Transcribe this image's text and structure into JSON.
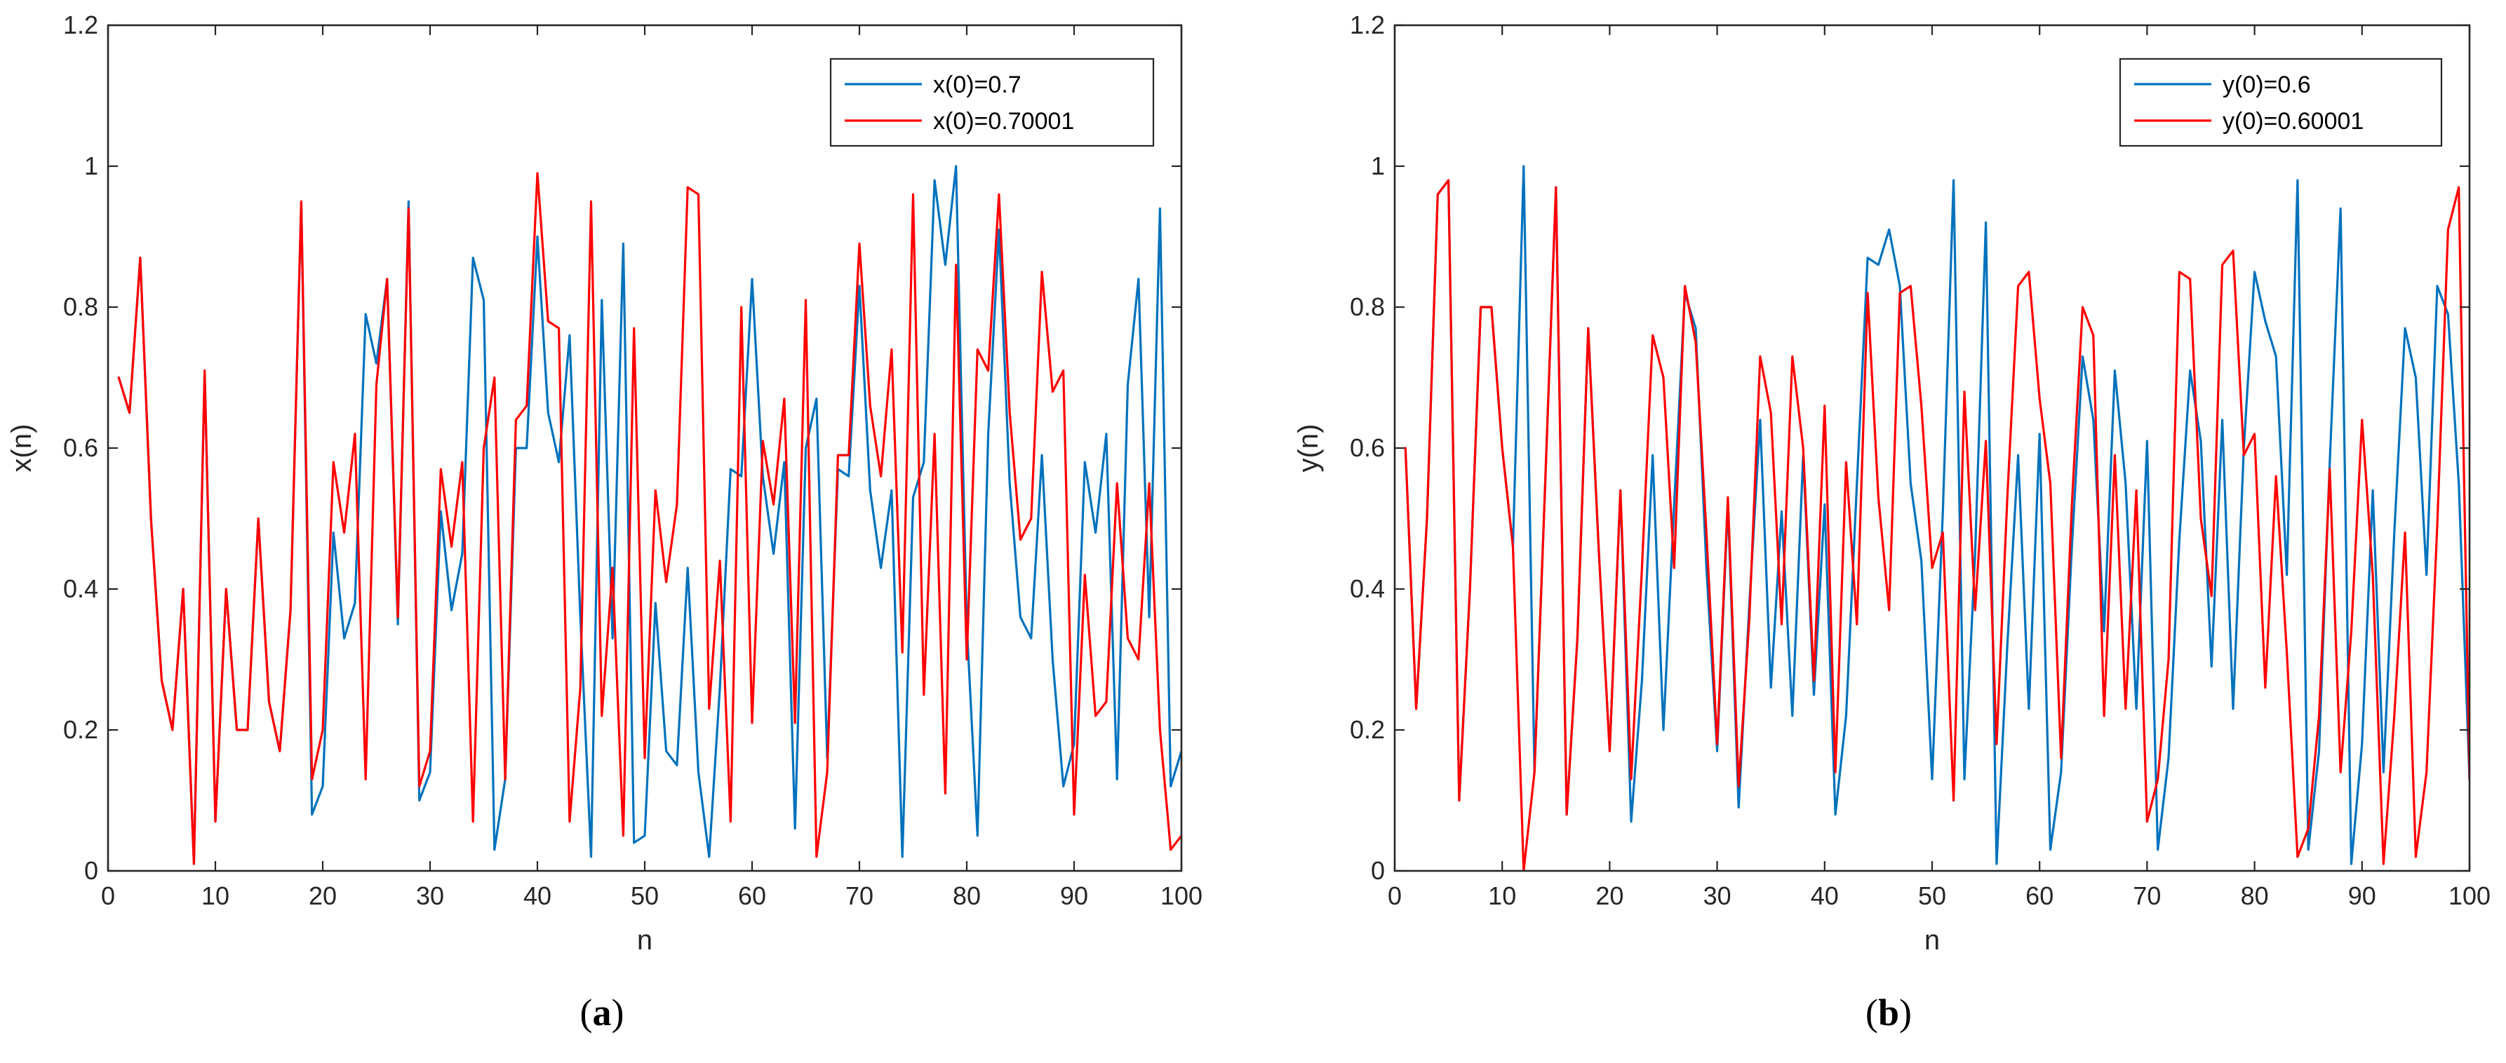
{
  "chart_data": [
    {
      "type": "line",
      "panel_label": "a",
      "title": "",
      "xlabel": "n",
      "ylabel": "x(n)",
      "xlim": [
        0,
        100
      ],
      "ylim": [
        0,
        1.2
      ],
      "xticks": [
        "0",
        "10",
        "20",
        "30",
        "40",
        "50",
        "60",
        "70",
        "80",
        "90",
        "100"
      ],
      "yticks": [
        "0",
        "0.2",
        "0.4",
        "0.6",
        "0.8",
        "1",
        "1.2"
      ],
      "grid": false,
      "legend_position": "top-right",
      "x": [
        1,
        2,
        3,
        4,
        5,
        6,
        7,
        8,
        9,
        10,
        11,
        12,
        13,
        14,
        15,
        16,
        17,
        18,
        19,
        20,
        21,
        22,
        23,
        24,
        25,
        26,
        27,
        28,
        29,
        30,
        31,
        32,
        33,
        34,
        35,
        36,
        37,
        38,
        39,
        40,
        41,
        42,
        43,
        44,
        45,
        46,
        47,
        48,
        49,
        50,
        51,
        52,
        53,
        54,
        55,
        56,
        57,
        58,
        59,
        60,
        61,
        62,
        63,
        64,
        65,
        66,
        67,
        68,
        69,
        70,
        71,
        72,
        73,
        74,
        75,
        76,
        77,
        78,
        79,
        80,
        81,
        82,
        83,
        84,
        85,
        86,
        87,
        88,
        89,
        90,
        91,
        92,
        93,
        94,
        95,
        96,
        97,
        98,
        99,
        100
      ],
      "series": [
        {
          "name": "x(0)=0.7",
          "color": "#0072BD",
          "values": [
            0.7,
            0.65,
            0.87,
            0.5,
            0.27,
            0.2,
            0.4,
            0.01,
            0.71,
            0.07,
            0.4,
            0.2,
            0.2,
            0.5,
            0.24,
            0.17,
            0.37,
            0.95,
            0.08,
            0.12,
            0.48,
            0.33,
            0.38,
            0.79,
            0.72,
            0.84,
            0.35,
            0.95,
            0.1,
            0.14,
            0.51,
            0.37,
            0.45,
            0.87,
            0.81,
            0.03,
            0.13,
            0.6,
            0.6,
            0.9,
            0.65,
            0.58,
            0.76,
            0.36,
            0.02,
            0.81,
            0.33,
            0.89,
            0.04,
            0.05,
            0.38,
            0.17,
            0.15,
            0.43,
            0.14,
            0.02,
            0.26,
            0.57,
            0.56,
            0.84,
            0.56,
            0.45,
            0.58,
            0.06,
            0.6,
            0.67,
            0.16,
            0.57,
            0.56,
            0.83,
            0.54,
            0.43,
            0.54,
            0.02,
            0.53,
            0.58,
            0.98,
            0.86,
            1.0,
            0.35,
            0.05,
            0.62,
            0.91,
            0.55,
            0.36,
            0.33,
            0.59,
            0.3,
            0.12,
            0.18,
            0.58,
            0.48,
            0.62,
            0.13,
            0.69,
            0.84,
            0.36,
            0.94,
            0.12,
            0.17
          ]
        },
        {
          "name": "x(0)=0.70001",
          "color": "#FF0000",
          "values": [
            0.7,
            0.65,
            0.87,
            0.5,
            0.27,
            0.2,
            0.4,
            0.01,
            0.71,
            0.07,
            0.4,
            0.2,
            0.2,
            0.5,
            0.24,
            0.17,
            0.37,
            0.95,
            0.13,
            0.2,
            0.58,
            0.48,
            0.62,
            0.13,
            0.69,
            0.84,
            0.36,
            0.94,
            0.12,
            0.17,
            0.57,
            0.46,
            0.58,
            0.07,
            0.6,
            0.7,
            0.13,
            0.64,
            0.66,
            0.99,
            0.78,
            0.77,
            0.07,
            0.26,
            0.95,
            0.22,
            0.43,
            0.05,
            0.77,
            0.16,
            0.54,
            0.41,
            0.52,
            0.97,
            0.96,
            0.23,
            0.44,
            0.07,
            0.8,
            0.21,
            0.61,
            0.52,
            0.67,
            0.21,
            0.81,
            0.02,
            0.14,
            0.59,
            0.59,
            0.89,
            0.66,
            0.56,
            0.74,
            0.31,
            0.96,
            0.25,
            0.62,
            0.11,
            0.86,
            0.3,
            0.74,
            0.71,
            0.96,
            0.65,
            0.47,
            0.5,
            0.85,
            0.68,
            0.71,
            0.08,
            0.42,
            0.22,
            0.24,
            0.55,
            0.33,
            0.3,
            0.55,
            0.2,
            0.03,
            0.05
          ]
        }
      ]
    },
    {
      "type": "line",
      "panel_label": "b",
      "title": "",
      "xlabel": "n",
      "ylabel": "y(n)",
      "xlim": [
        0,
        100
      ],
      "ylim": [
        0,
        1.2
      ],
      "xticks": [
        "0",
        "10",
        "20",
        "30",
        "40",
        "50",
        "60",
        "70",
        "80",
        "90",
        "100"
      ],
      "yticks": [
        "0",
        "0.2",
        "0.4",
        "0.6",
        "0.8",
        "1",
        "1.2"
      ],
      "grid": false,
      "legend_position": "top-right",
      "x": [
        1,
        2,
        3,
        4,
        5,
        6,
        7,
        8,
        9,
        10,
        11,
        12,
        13,
        14,
        15,
        16,
        17,
        18,
        19,
        20,
        21,
        22,
        23,
        24,
        25,
        26,
        27,
        28,
        29,
        30,
        31,
        32,
        33,
        34,
        35,
        36,
        37,
        38,
        39,
        40,
        41,
        42,
        43,
        44,
        45,
        46,
        47,
        48,
        49,
        50,
        51,
        52,
        53,
        54,
        55,
        56,
        57,
        58,
        59,
        60,
        61,
        62,
        63,
        64,
        65,
        66,
        67,
        68,
        69,
        70,
        71,
        72,
        73,
        74,
        75,
        76,
        77,
        78,
        79,
        80,
        81,
        82,
        83,
        84,
        85,
        86,
        87,
        88,
        89,
        90,
        91,
        92,
        93,
        94,
        95,
        96,
        97,
        98,
        99,
        100
      ],
      "series": [
        {
          "name": "y(0)=0.6",
          "color": "#0072BD",
          "values": [
            0.6,
            0.23,
            0.5,
            0.96,
            0.98,
            0.1,
            0.4,
            0.8,
            0.8,
            0.6,
            0.46,
            1.0,
            0.14,
            0.55,
            0.97,
            0.08,
            0.33,
            0.77,
            0.45,
            0.17,
            0.54,
            0.07,
            0.27,
            0.59,
            0.2,
            0.52,
            0.82,
            0.77,
            0.43,
            0.17,
            0.52,
            0.09,
            0.38,
            0.64,
            0.26,
            0.51,
            0.22,
            0.59,
            0.25,
            0.52,
            0.08,
            0.22,
            0.55,
            0.87,
            0.86,
            0.91,
            0.83,
            0.55,
            0.44,
            0.13,
            0.51,
            0.98,
            0.13,
            0.45,
            0.92,
            0.01,
            0.32,
            0.59,
            0.23,
            0.62,
            0.03,
            0.14,
            0.46,
            0.73,
            0.64,
            0.34,
            0.71,
            0.55,
            0.23,
            0.61,
            0.03,
            0.16,
            0.47,
            0.71,
            0.61,
            0.29,
            0.64,
            0.23,
            0.6,
            0.85,
            0.78,
            0.73,
            0.42,
            0.98,
            0.03,
            0.17,
            0.58,
            0.94,
            0.01,
            0.18,
            0.54,
            0.14,
            0.48,
            0.77,
            0.7,
            0.42,
            0.83,
            0.79,
            0.55,
            0.13
          ]
        },
        {
          "name": "y(0)=0.60001",
          "color": "#FF0000",
          "values": [
            0.6,
            0.23,
            0.5,
            0.96,
            0.98,
            0.1,
            0.4,
            0.8,
            0.8,
            0.6,
            0.46,
            0.0,
            0.14,
            0.55,
            0.97,
            0.08,
            0.33,
            0.77,
            0.45,
            0.17,
            0.54,
            0.13,
            0.43,
            0.76,
            0.7,
            0.43,
            0.83,
            0.75,
            0.48,
            0.18,
            0.53,
            0.12,
            0.36,
            0.73,
            0.65,
            0.35,
            0.73,
            0.6,
            0.27,
            0.66,
            0.14,
            0.58,
            0.35,
            0.82,
            0.53,
            0.37,
            0.82,
            0.83,
            0.66,
            0.43,
            0.48,
            0.1,
            0.68,
            0.37,
            0.61,
            0.18,
            0.53,
            0.83,
            0.85,
            0.67,
            0.55,
            0.16,
            0.52,
            0.8,
            0.76,
            0.22,
            0.59,
            0.23,
            0.54,
            0.07,
            0.13,
            0.3,
            0.85,
            0.84,
            0.5,
            0.39,
            0.86,
            0.88,
            0.59,
            0.62,
            0.26,
            0.56,
            0.31,
            0.02,
            0.06,
            0.22,
            0.57,
            0.14,
            0.34,
            0.64,
            0.42,
            0.01,
            0.22,
            0.48,
            0.02,
            0.14,
            0.49,
            0.91,
            0.97,
            0.13
          ]
        }
      ]
    }
  ]
}
